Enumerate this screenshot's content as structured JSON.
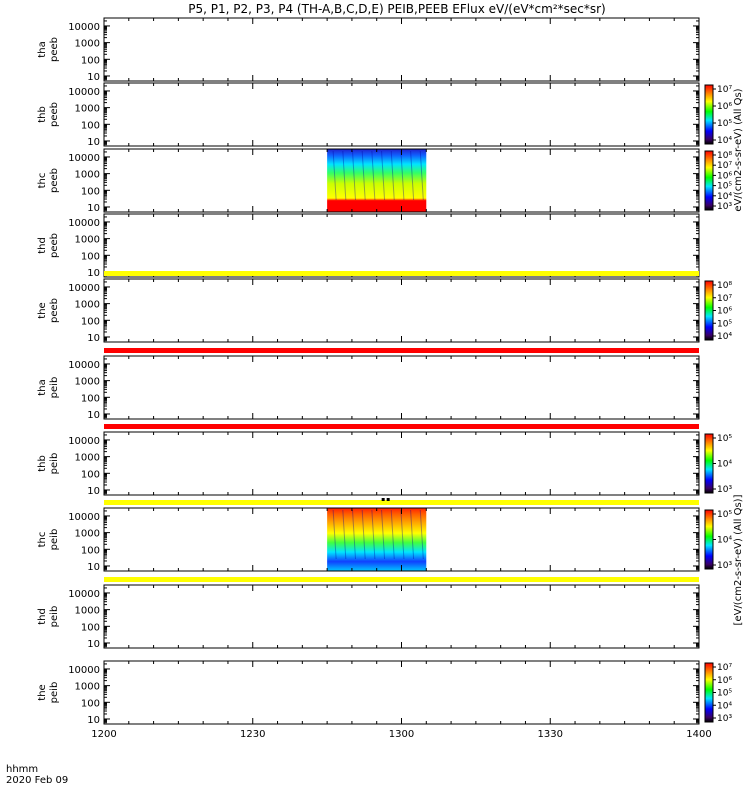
{
  "title": "P5, P1, P2, P3, P4 (TH-A,B,C,D,E) PEIB,PEEB EFlux eV/(eV*cm²*sec*sr)",
  "time_axis": {
    "label_line1": "hhmm",
    "label_line2": "2020 Feb 09",
    "tick_labels": [
      "1200",
      "1230",
      "1300",
      "1330",
      "1400"
    ]
  },
  "y_tick_labels": [
    "10",
    "100",
    "1000",
    "10000"
  ],
  "colors": {
    "band_yellow": "#ffff00",
    "band_red": "#ff0000",
    "axis": "#000000"
  },
  "colorbar_label_electron": "eV/(cm2-s-sr-eV) (All Qs)",
  "colorbar_label_ion": "[eV/(cm2-s-sr-eV) (All Qs)]",
  "chart_data": {
    "type": "heatmap",
    "x_unit": "hhmm",
    "x_range": [
      "1200",
      "1400"
    ],
    "y_scale": "log",
    "y_range": [
      5,
      30000
    ],
    "panels": [
      {
        "probe": "tha",
        "product": "peeb",
        "label_line1": "tha",
        "label_line2": "peeb",
        "colorbar": false,
        "data_window": null
      },
      {
        "probe": "thb",
        "product": "peeb",
        "label_line1": "thb",
        "label_line2": "peeb",
        "colorbar": true,
        "colorbar_ticks": [
          "10⁴",
          "10⁵",
          "10⁶",
          "10⁷"
        ],
        "data_window": null
      },
      {
        "probe": "thc",
        "product": "peeb",
        "label_line1": "thc",
        "label_line2": "peeb",
        "colorbar": true,
        "colorbar_ticks": [
          "10³",
          "10⁴",
          "10⁵",
          "10⁶",
          "10⁷",
          "10⁸"
        ],
        "data_window": {
          "start": "1245",
          "end": "1305"
        }
      },
      {
        "probe": "thd",
        "product": "peeb",
        "label_line1": "thd",
        "label_line2": "peeb",
        "colorbar": false,
        "data_window": null
      },
      {
        "probe": "the",
        "product": "peeb",
        "label_line1": "the",
        "label_line2": "peeb",
        "colorbar": true,
        "colorbar_ticks": [
          "10⁴",
          "10⁵",
          "10⁶",
          "10⁷",
          "10⁸"
        ],
        "data_window": null
      },
      {
        "probe": "tha",
        "product": "peib",
        "label_line1": "tha",
        "label_line2": "peib",
        "colorbar": false,
        "data_window": null
      },
      {
        "probe": "thb",
        "product": "peib",
        "label_line1": "thb",
        "label_line2": "peib",
        "colorbar": true,
        "colorbar_ticks": [
          "10³",
          "10⁴",
          "10⁵"
        ],
        "data_window": null
      },
      {
        "probe": "thc",
        "product": "peib",
        "label_line1": "thc",
        "label_line2": "peib",
        "colorbar": true,
        "colorbar_ticks": [
          "10³",
          "10⁴",
          "10⁵"
        ],
        "data_window": {
          "start": "1245",
          "end": "1305"
        }
      },
      {
        "probe": "thd",
        "product": "peib",
        "label_line1": "thd",
        "label_line2": "peib",
        "colorbar": false,
        "data_window": null
      },
      {
        "probe": "the",
        "product": "peib",
        "label_line1": "the",
        "label_line2": "peib",
        "colorbar": true,
        "colorbar_ticks": [
          "10³",
          "10⁴",
          "10⁵",
          "10⁶",
          "10⁷"
        ],
        "data_window": null
      }
    ],
    "separator_bands": [
      {
        "after_panel": 5,
        "color": "yellow"
      },
      {
        "after_panel": 6,
        "color": "red"
      },
      {
        "after_panel": 7,
        "color": "red"
      },
      {
        "after_panel": 8,
        "color": "yellow"
      },
      {
        "after_panel": 9,
        "color": "yellow"
      }
    ]
  }
}
